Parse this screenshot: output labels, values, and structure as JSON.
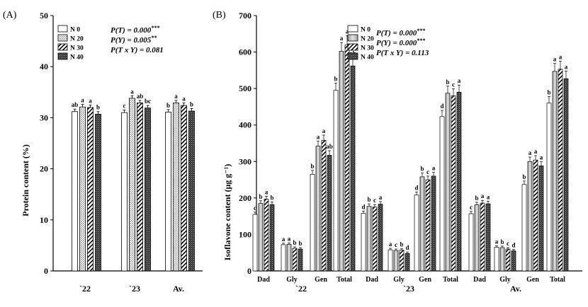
{
  "chart_data": [
    {
      "id": "A",
      "panel_label": "(A)",
      "type": "bar",
      "ylabel": "Protein content (%)",
      "ylim": [
        0,
        50
      ],
      "yticks": [
        0,
        10,
        20,
        30,
        40,
        50
      ],
      "categories": [
        "`22",
        "`23",
        "Av."
      ],
      "series": [
        {
          "name": "N 0",
          "pattern": "white",
          "values": [
            31.2,
            31.0,
            31.1
          ],
          "letters": [
            "ab",
            "c",
            "b"
          ]
        },
        {
          "name": "N 20",
          "pattern": "dots",
          "values": [
            32.1,
            33.8,
            32.9
          ],
          "letters": [
            "a",
            "a",
            "a"
          ]
        },
        {
          "name": "N 30",
          "pattern": "diag",
          "values": [
            32.0,
            32.9,
            32.4
          ],
          "letters": [
            "a",
            "ab",
            "a"
          ]
        },
        {
          "name": "N 40",
          "pattern": "dark",
          "values": [
            30.7,
            31.9,
            31.3
          ],
          "letters": [
            "b",
            "bc",
            "b"
          ]
        }
      ],
      "stats": [
        {
          "text": "P(T) = 0.000",
          "stars": "***"
        },
        {
          "text": "P(Y) = 0.005",
          "stars": "**"
        },
        {
          "text": "P(T x Y) = 0.081",
          "stars": ""
        }
      ],
      "legend_position": "top-left"
    },
    {
      "id": "B",
      "panel_label": "(B)",
      "type": "bar",
      "ylabel": "Isoflavone content (μg g⁻¹)",
      "ylim": [
        0,
        700
      ],
      "yticks": [
        0,
        100,
        200,
        300,
        400,
        500,
        600,
        700
      ],
      "groups": [
        "`22",
        "`23",
        "Av."
      ],
      "categories": [
        "Dad",
        "Gly",
        "Gen",
        "Total",
        "Dad",
        "Gly",
        "Gen",
        "Total",
        "Dad",
        "Gly",
        "Gen",
        "Total"
      ],
      "series": [
        {
          "name": "N 0",
          "pattern": "white",
          "values": [
            155,
            72,
            265,
            495,
            158,
            58,
            208,
            423,
            157,
            65,
            237,
            460
          ],
          "letters": [
            "c",
            "a",
            "b",
            "b",
            "d",
            "a",
            "d",
            "d",
            "c",
            "a",
            "b",
            "b"
          ]
        },
        {
          "name": "N 20",
          "pattern": "gray",
          "values": [
            185,
            73,
            342,
            602,
            177,
            56,
            258,
            487,
            181,
            64,
            300,
            547
          ],
          "letters": [
            "b",
            "a",
            "a",
            "a",
            "b",
            "c",
            "b",
            "b",
            "b",
            "b",
            "a",
            "a"
          ]
        },
        {
          "name": "N 30",
          "pattern": "diag",
          "values": [
            197,
            62,
            358,
            620,
            175,
            57,
            250,
            480,
            186,
            60,
            304,
            553
          ],
          "letters": [
            "a",
            "b",
            "a",
            "a",
            "c",
            "b",
            "c",
            "c",
            "a",
            "c",
            "a",
            "a"
          ]
        },
        {
          "name": "N 40",
          "pattern": "dark",
          "values": [
            182,
            60,
            317,
            562,
            183,
            48,
            260,
            490,
            184,
            55,
            288,
            527
          ],
          "letters": [
            "b",
            "b",
            "ab",
            "ab",
            "a",
            "d",
            "a",
            "a",
            "a",
            "d",
            "a",
            "a"
          ]
        }
      ],
      "stats": [
        {
          "text": "P(T) = 0.000",
          "stars": "***"
        },
        {
          "text": "P(Y) = 0.000",
          "stars": "***"
        },
        {
          "text": "P(T x Y) = 0.113",
          "stars": ""
        }
      ],
      "legend_position": "top-center"
    }
  ]
}
